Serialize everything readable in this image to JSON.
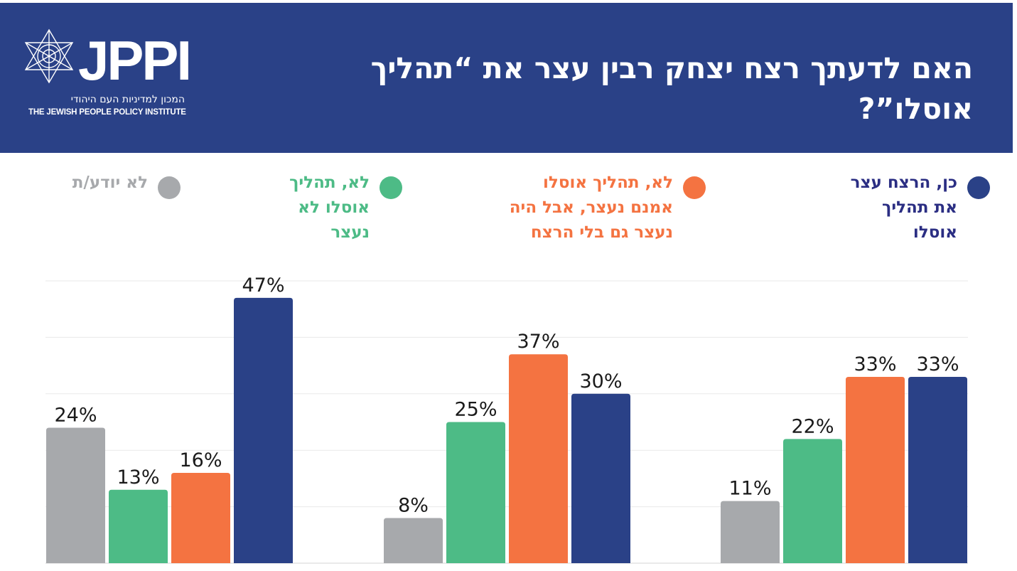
{
  "title": "האם לדעתך רצח יצחק רבין עצר את “תהליך אוסלו”?",
  "logo": {
    "brand": "JPPI",
    "subtitle_he": "המכון למדיניות העם היהודי",
    "subtitle_en": "THE JEWISH PEOPLE POLICY INSTITUTE"
  },
  "colors": {
    "header_bg": "#2a4187",
    "navy": "#2a4187",
    "orange": "#f47341",
    "green": "#4dbb86",
    "gray": "#a7a9ac"
  },
  "legend": [
    {
      "label": "כן, הרצח עצר\nאת תהליך\nאוסלו",
      "color": "#2a4187",
      "text_color": "#2b2e83"
    },
    {
      "label": "לא, תהליך אוסלו\nאמנם נעצר, אבל היה\nנעצר גם בלי הרצח",
      "color": "#f47341",
      "text_color": "#f47341"
    },
    {
      "label": "לא, תהליך\nאוסלו לא\nנעצר",
      "color": "#4dbb86",
      "text_color": "#4dbb86"
    },
    {
      "label": "לא יודע/ת",
      "color": "#a7a9ac",
      "text_color": "#a7a9ac"
    }
  ],
  "chart_data": {
    "type": "bar",
    "value_suffix": "%",
    "groups": 3,
    "series": [
      {
        "name": "לא יודע/ת",
        "color": "#a7a9ac",
        "values": [
          24,
          8,
          11
        ]
      },
      {
        "name": "לא, תהליך אוסלו לא נעצר",
        "color": "#4dbb86",
        "values": [
          13,
          25,
          22
        ]
      },
      {
        "name": "לא, תהליך אוסלו אמנם נעצר, אבל היה נעצר גם בלי הרצח",
        "color": "#f47341",
        "values": [
          16,
          37,
          33
        ]
      },
      {
        "name": "כן, הרצח עצר את תהליך אוסלו",
        "color": "#2a4187",
        "values": [
          47,
          30,
          33
        ]
      }
    ],
    "ylim": [
      0,
      50
    ],
    "grid": true
  }
}
